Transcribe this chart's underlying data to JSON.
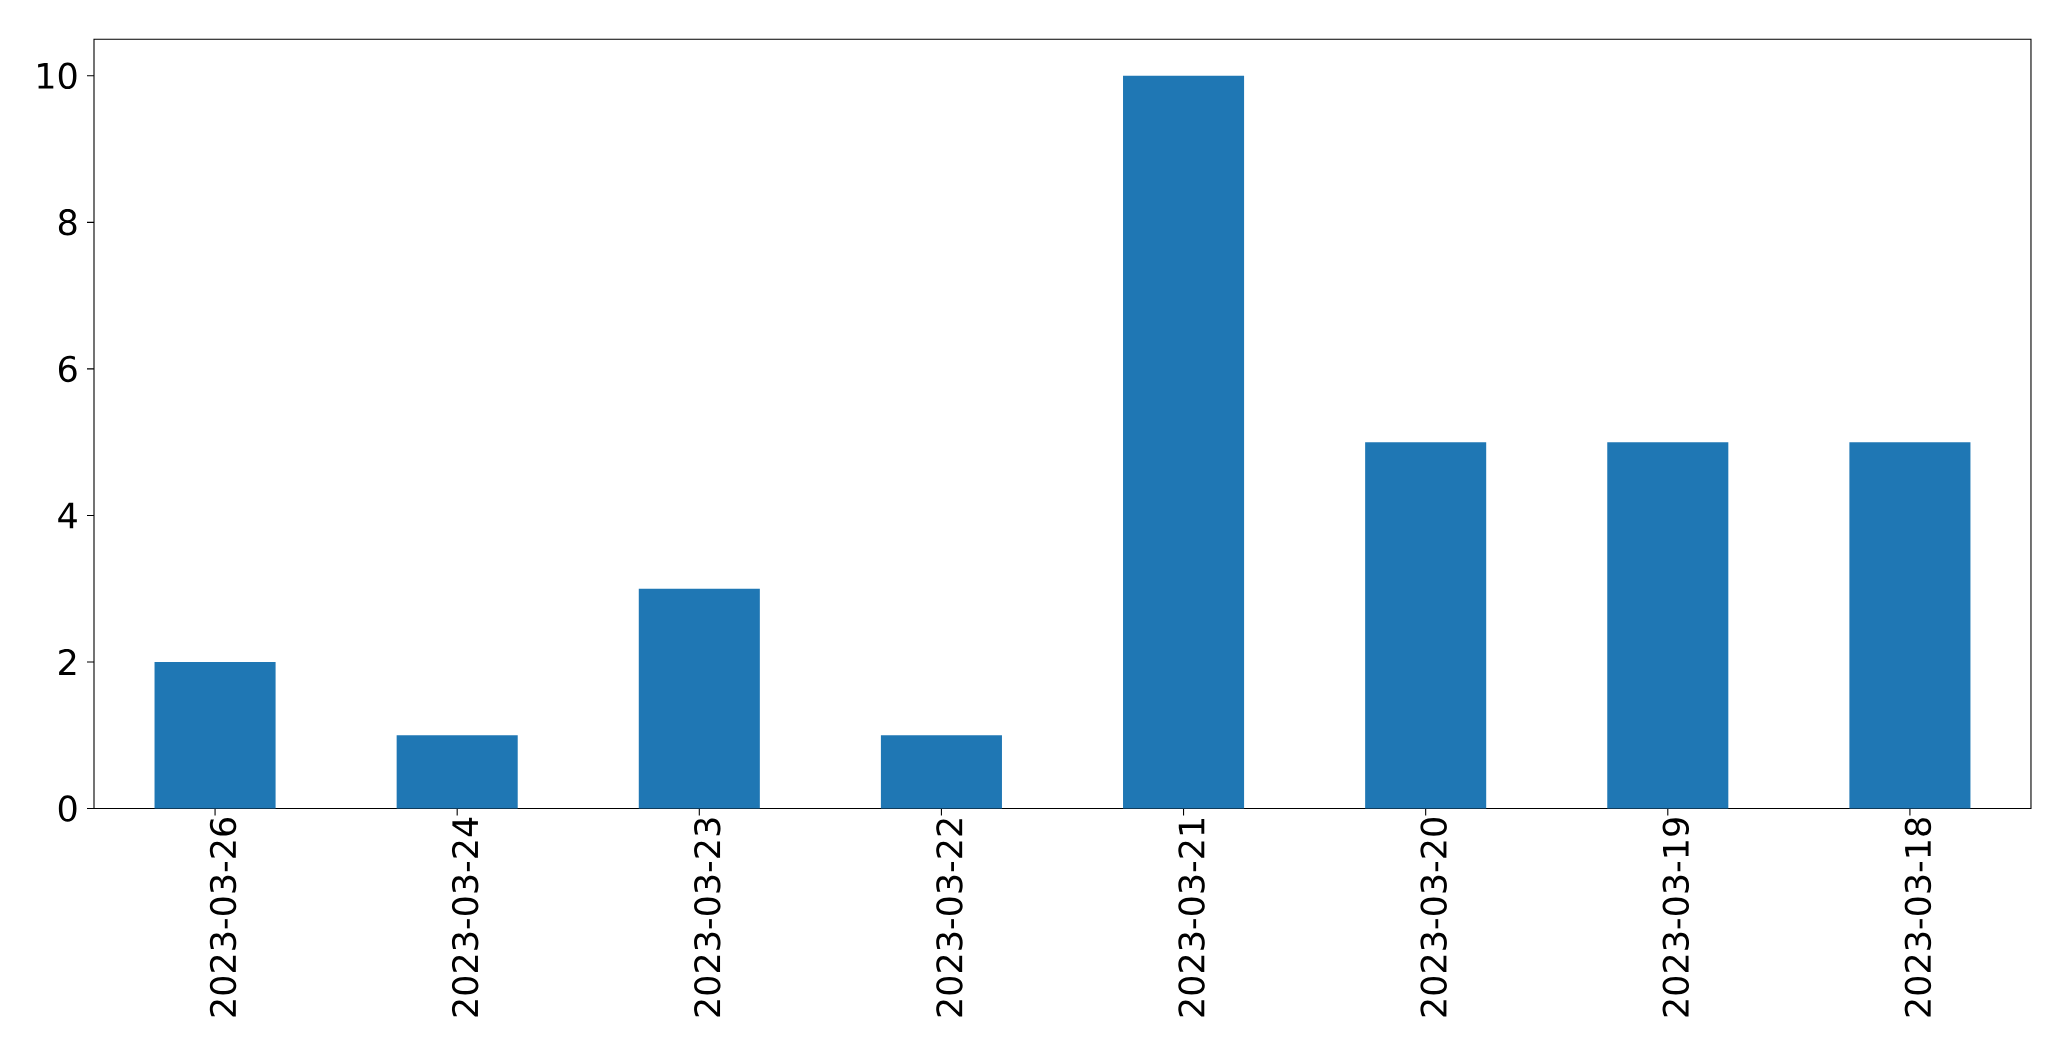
{
  "chart_data": {
    "type": "bar",
    "categories": [
      "2023-03-26",
      "2023-03-24",
      "2023-03-23",
      "2023-03-22",
      "2023-03-21",
      "2023-03-20",
      "2023-03-19",
      "2023-03-18"
    ],
    "values": [
      2,
      1,
      3,
      1,
      10,
      5,
      5,
      5
    ],
    "color": "#1f77b4",
    "ylim": [
      0,
      10.5
    ],
    "yticks": [
      0,
      2,
      4,
      6,
      8,
      10
    ]
  }
}
